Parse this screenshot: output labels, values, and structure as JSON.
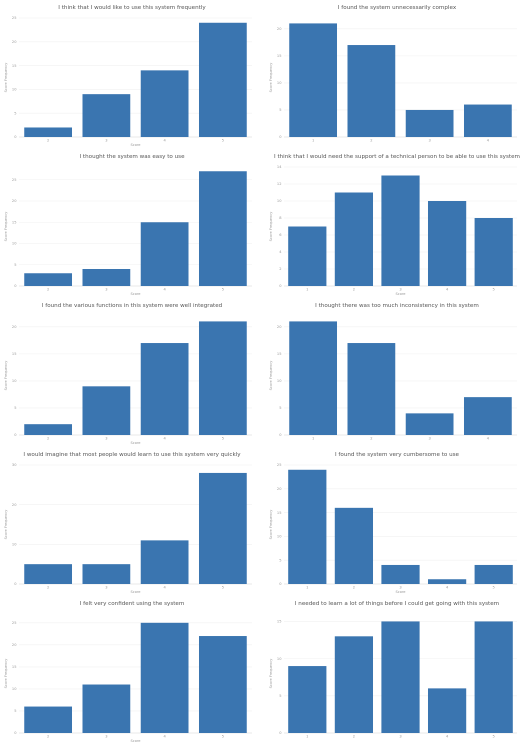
{
  "colors": {
    "bar": "#3a75b0"
  },
  "chart_data": [
    {
      "type": "bar",
      "title": "I think that I would like to use this system frequently",
      "xlabel": "Score",
      "ylabel": "Score Frequency",
      "categories": [
        "2",
        "3",
        "4",
        "5"
      ],
      "values": [
        2,
        9,
        14,
        24
      ],
      "ylim": [
        0,
        25
      ],
      "yticks": [
        "0",
        "5",
        "10",
        "15",
        "20",
        "25"
      ],
      "grid": true,
      "legend": "none"
    },
    {
      "type": "bar",
      "title": "I found the system unnecessarily complex",
      "xlabel": "",
      "ylabel": "Score Frequency",
      "categories": [
        "1",
        "2",
        "3",
        "4"
      ],
      "values": [
        21,
        17,
        5,
        6
      ],
      "ylim": [
        0,
        22
      ],
      "yticks": [
        "0",
        "5",
        "10",
        "15",
        "20"
      ],
      "grid": true,
      "legend": "none"
    },
    {
      "type": "bar",
      "title": "I thought the system was easy to use",
      "xlabel": "Score",
      "ylabel": "Score Frequency",
      "categories": [
        "2",
        "3",
        "4",
        "5"
      ],
      "values": [
        3,
        4,
        15,
        27
      ],
      "ylim": [
        0,
        28
      ],
      "yticks": [
        "0",
        "5",
        "10",
        "15",
        "20",
        "25"
      ],
      "grid": true,
      "legend": "none"
    },
    {
      "type": "bar",
      "title": "I think that I would need the support of a technical person to be able to use this system",
      "xlabel": "Score",
      "ylabel": "Score Frequency",
      "categories": [
        "1",
        "2",
        "3",
        "4",
        "5"
      ],
      "values": [
        7,
        11,
        13,
        10,
        8
      ],
      "ylim": [
        0,
        14
      ],
      "yticks": [
        "0",
        "2",
        "4",
        "6",
        "8",
        "10",
        "12",
        "14"
      ],
      "grid": true,
      "legend": "none"
    },
    {
      "type": "bar",
      "title": "I found the various functions in this system were well integrated",
      "xlabel": "Score",
      "ylabel": "Score Frequency",
      "categories": [
        "2",
        "3",
        "4",
        "5"
      ],
      "values": [
        2,
        9,
        17,
        21
      ],
      "ylim": [
        0,
        22
      ],
      "yticks": [
        "0",
        "5",
        "10",
        "15",
        "20"
      ],
      "grid": true,
      "legend": "none"
    },
    {
      "type": "bar",
      "title": "I thought there was too much inconsistency in this system",
      "xlabel": "",
      "ylabel": "Score Frequency",
      "categories": [
        "1",
        "2",
        "3",
        "4"
      ],
      "values": [
        21,
        17,
        4,
        7
      ],
      "ylim": [
        0,
        22
      ],
      "yticks": [
        "0",
        "5",
        "10",
        "15",
        "20"
      ],
      "grid": true,
      "legend": "none"
    },
    {
      "type": "bar",
      "title": "I would imagine that most people would learn to use this system very quickly",
      "xlabel": "Score",
      "ylabel": "Score Frequency",
      "categories": [
        "2",
        "3",
        "4",
        "5"
      ],
      "values": [
        5,
        5,
        11,
        28
      ],
      "ylim": [
        0,
        30
      ],
      "yticks": [
        "0",
        "10",
        "20",
        "30"
      ],
      "grid": true,
      "legend": "none"
    },
    {
      "type": "bar",
      "title": "I found the system very cumbersome to use",
      "xlabel": "Score",
      "ylabel": "Score Frequency",
      "categories": [
        "1",
        "2",
        "3",
        "4",
        "5"
      ],
      "values": [
        24,
        16,
        4,
        1,
        4
      ],
      "ylim": [
        0,
        25
      ],
      "yticks": [
        "0",
        "5",
        "10",
        "15",
        "20",
        "25"
      ],
      "grid": true,
      "legend": "none"
    },
    {
      "type": "bar",
      "title": "I felt very confident using the system",
      "xlabel": "Score",
      "ylabel": "Score Frequency",
      "categories": [
        "2",
        "3",
        "4",
        "5"
      ],
      "values": [
        6,
        11,
        25,
        22
      ],
      "ylim": [
        0,
        27
      ],
      "yticks": [
        "0",
        "5",
        "10",
        "15",
        "20",
        "25"
      ],
      "grid": true,
      "legend": "none"
    },
    {
      "type": "bar",
      "title": "I needed to learn a lot of things before I could get going with this system",
      "xlabel": "",
      "ylabel": "Score Frequency",
      "categories": [
        "1",
        "2",
        "3",
        "4",
        "5"
      ],
      "values": [
        9,
        13,
        15,
        6,
        15
      ],
      "ylim": [
        0,
        16
      ],
      "yticks": [
        "0",
        "5",
        "10",
        "15"
      ],
      "grid": true,
      "legend": "none"
    }
  ]
}
